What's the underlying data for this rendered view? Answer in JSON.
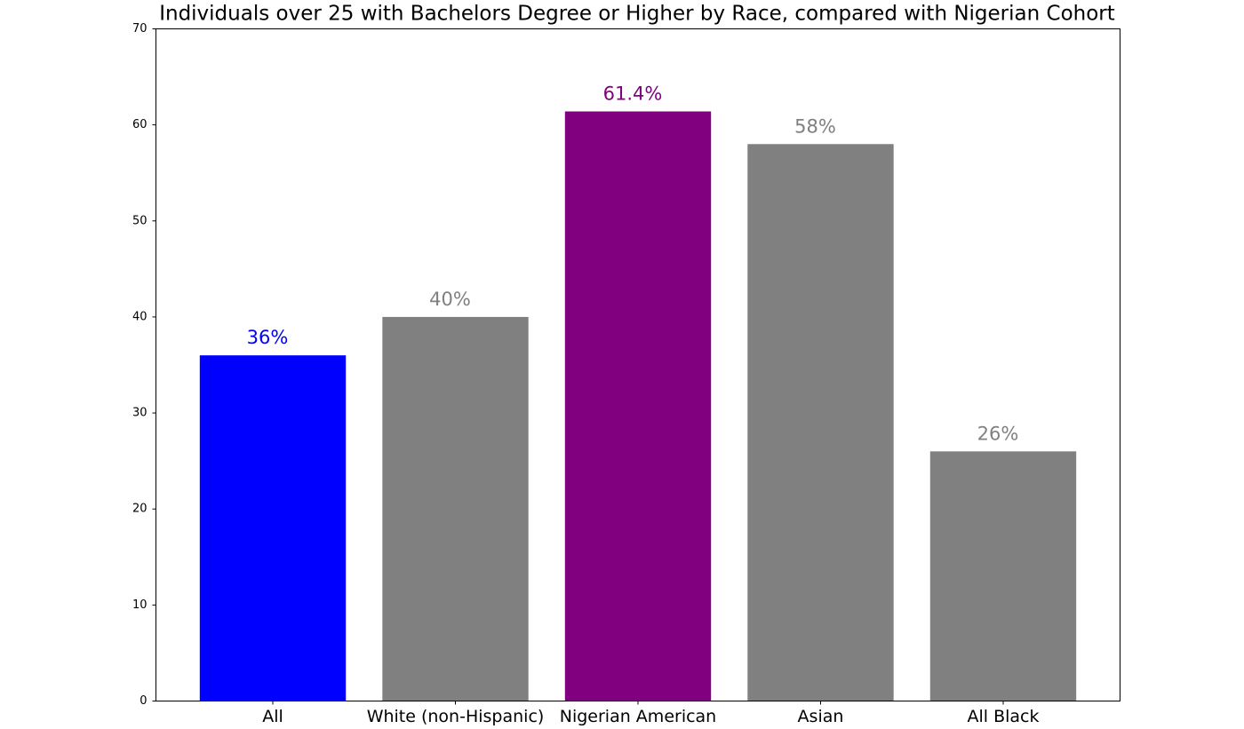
{
  "chart_data": {
    "type": "bar",
    "title": "Individuals over 25 with Bachelors Degree or Higher by Race, compared with Nigerian Cohort",
    "categories": [
      "All",
      "White (non-Hispanic)",
      "Nigerian American",
      "Asian",
      "All Black"
    ],
    "values": [
      36,
      40,
      61.4,
      58,
      26
    ],
    "value_labels": [
      "36%",
      "40%",
      "61.4%",
      "58%",
      "26%"
    ],
    "colors": [
      "#0000ff",
      "#808080",
      "#800080",
      "#808080",
      "#808080"
    ],
    "ylim": [
      0,
      70
    ],
    "yticks": [
      0,
      10,
      20,
      30,
      40,
      50,
      60,
      70
    ],
    "grid": false
  }
}
